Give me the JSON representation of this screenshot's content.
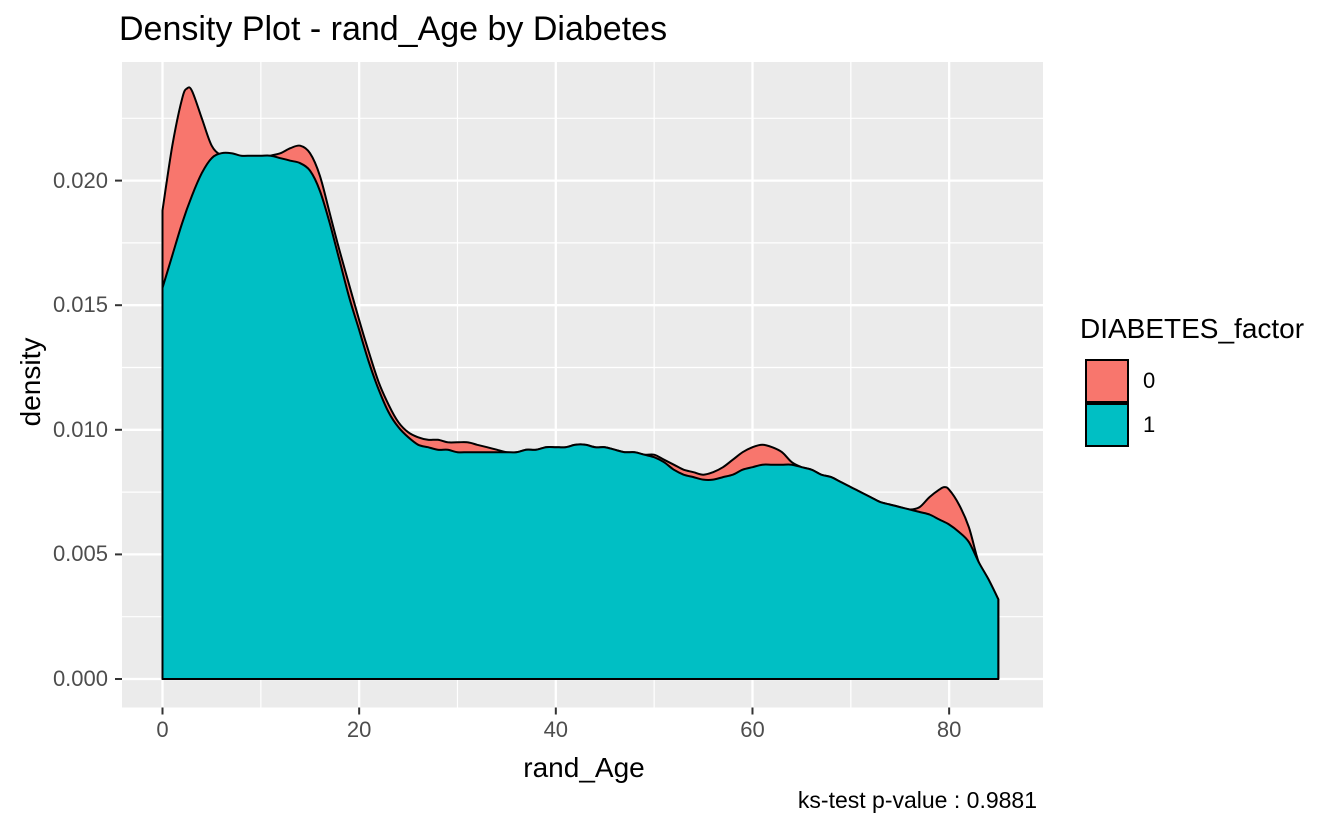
{
  "title": "Density Plot - rand_Age by Diabetes",
  "caption": "ks-test p-value : 0.9881",
  "axes": {
    "x": {
      "label": "rand_Age",
      "ticks": [
        "0",
        "20",
        "40",
        "60",
        "80"
      ]
    },
    "y": {
      "label": "density",
      "ticks": [
        "0.000",
        "0.005",
        "0.010",
        "0.015",
        "0.020"
      ]
    }
  },
  "legend": {
    "title": "DIABETES_factor",
    "items": [
      {
        "label": "0",
        "color": "#F8766D"
      },
      {
        "label": "1",
        "color": "#00BFC4"
      }
    ]
  },
  "style": {
    "panel_bg": "#EBEBEB",
    "grid_color": "#FFFFFF",
    "outline_color": "#000000",
    "tick_color": "#333333",
    "axis_text_color": "#4d4d4d"
  },
  "chart_data": {
    "type": "area",
    "subtype": "kernel-density",
    "title": "Density Plot - rand_Age by Diabetes",
    "xlabel": "rand_Age",
    "ylabel": "density",
    "xlim": [
      0,
      85
    ],
    "ylim": [
      0,
      0.0237
    ],
    "x_major_ticks": [
      0,
      20,
      40,
      60,
      80
    ],
    "x_minor_ticks": [
      10,
      30,
      50,
      70
    ],
    "y_major_ticks": [
      0,
      0.005,
      0.01,
      0.015,
      0.02
    ],
    "y_minor_ticks": [
      0.0025,
      0.0075,
      0.0125,
      0.0175,
      0.0225
    ],
    "grid": true,
    "legend_position": "right",
    "legend_title": "DIABETES_factor",
    "annotation": "ks-test p-value : 0.9881",
    "series": [
      {
        "name": "0",
        "color": "#F8766D",
        "x": [
          0,
          1,
          2,
          2.5,
          3,
          4,
          5,
          6,
          7,
          8,
          9,
          10,
          11,
          12,
          13,
          14,
          15,
          16,
          17,
          18,
          19,
          20,
          21,
          22,
          23,
          24,
          25,
          26,
          27,
          28,
          29,
          30,
          31,
          32,
          33,
          34,
          35,
          36,
          37,
          38,
          39,
          40,
          41,
          42,
          43,
          44,
          45,
          46,
          47,
          48,
          49,
          50,
          51,
          52,
          53,
          54,
          55,
          56,
          57,
          58,
          59,
          60,
          61,
          62,
          63,
          64,
          65,
          66,
          67,
          68,
          69,
          70,
          71,
          72,
          73,
          74,
          75,
          76,
          77,
          78,
          79,
          79.5,
          80,
          81,
          82,
          83,
          84,
          85
        ],
        "y": [
          0.0188,
          0.0214,
          0.0233,
          0.0237,
          0.0236,
          0.0225,
          0.0214,
          0.021,
          0.0208,
          0.0208,
          0.0208,
          0.0209,
          0.021,
          0.0211,
          0.0213,
          0.0214,
          0.0211,
          0.0202,
          0.0187,
          0.0172,
          0.0158,
          0.0144,
          0.0131,
          0.0119,
          0.011,
          0.0103,
          0.0099,
          0.0097,
          0.0096,
          0.0096,
          0.0095,
          0.0095,
          0.0095,
          0.0094,
          0.0093,
          0.0092,
          0.0091,
          0.0091,
          0.0092,
          0.0092,
          0.0093,
          0.0093,
          0.0093,
          0.0094,
          0.0094,
          0.0093,
          0.0093,
          0.0092,
          0.0091,
          0.0091,
          0.009,
          0.009,
          0.0088,
          0.0086,
          0.0084,
          0.0083,
          0.0082,
          0.0083,
          0.0085,
          0.0088,
          0.0091,
          0.0093,
          0.0094,
          0.0093,
          0.0091,
          0.0087,
          0.0085,
          0.0084,
          0.0082,
          0.0081,
          0.0079,
          0.0077,
          0.0075,
          0.0073,
          0.0071,
          0.007,
          0.0069,
          0.0068,
          0.0069,
          0.0073,
          0.0076,
          0.0077,
          0.0076,
          0.007,
          0.0061,
          0.0047,
          0.004,
          0.0032
        ]
      },
      {
        "name": "1",
        "color": "#00BFC4",
        "x": [
          0,
          1,
          2,
          3,
          4,
          5,
          6,
          7,
          8,
          9,
          10,
          11,
          12,
          13,
          14,
          15,
          16,
          17,
          18,
          19,
          20,
          21,
          22,
          23,
          24,
          25,
          26,
          27,
          28,
          29,
          30,
          31,
          32,
          33,
          34,
          35,
          36,
          37,
          38,
          39,
          40,
          41,
          42,
          43,
          44,
          45,
          46,
          47,
          48,
          49,
          50,
          51,
          52,
          53,
          54,
          55,
          56,
          57,
          58,
          59,
          60,
          61,
          62,
          63,
          64,
          65,
          66,
          67,
          68,
          69,
          70,
          71,
          72,
          73,
          74,
          75,
          76,
          77,
          78,
          79,
          80,
          81,
          82,
          83,
          84,
          85
        ],
        "y": [
          0.0157,
          0.017,
          0.0183,
          0.0194,
          0.0203,
          0.0209,
          0.0211,
          0.0211,
          0.021,
          0.021,
          0.021,
          0.021,
          0.0209,
          0.0208,
          0.0207,
          0.0204,
          0.0196,
          0.0183,
          0.0168,
          0.0153,
          0.014,
          0.0127,
          0.0116,
          0.0107,
          0.0101,
          0.0097,
          0.0094,
          0.0093,
          0.0092,
          0.0092,
          0.0091,
          0.0091,
          0.0091,
          0.0091,
          0.0091,
          0.0091,
          0.0091,
          0.0092,
          0.0092,
          0.0093,
          0.0093,
          0.0093,
          0.0094,
          0.0094,
          0.0093,
          0.0093,
          0.0092,
          0.0091,
          0.0091,
          0.009,
          0.0089,
          0.0087,
          0.0084,
          0.0082,
          0.0081,
          0.008,
          0.008,
          0.0081,
          0.0082,
          0.0084,
          0.0085,
          0.0086,
          0.0086,
          0.0086,
          0.0086,
          0.0085,
          0.0084,
          0.0082,
          0.0081,
          0.0079,
          0.0077,
          0.0075,
          0.0073,
          0.0071,
          0.007,
          0.0069,
          0.0068,
          0.0067,
          0.0066,
          0.0064,
          0.0062,
          0.0059,
          0.0055,
          0.0047,
          0.004,
          0.0032
        ]
      }
    ]
  }
}
